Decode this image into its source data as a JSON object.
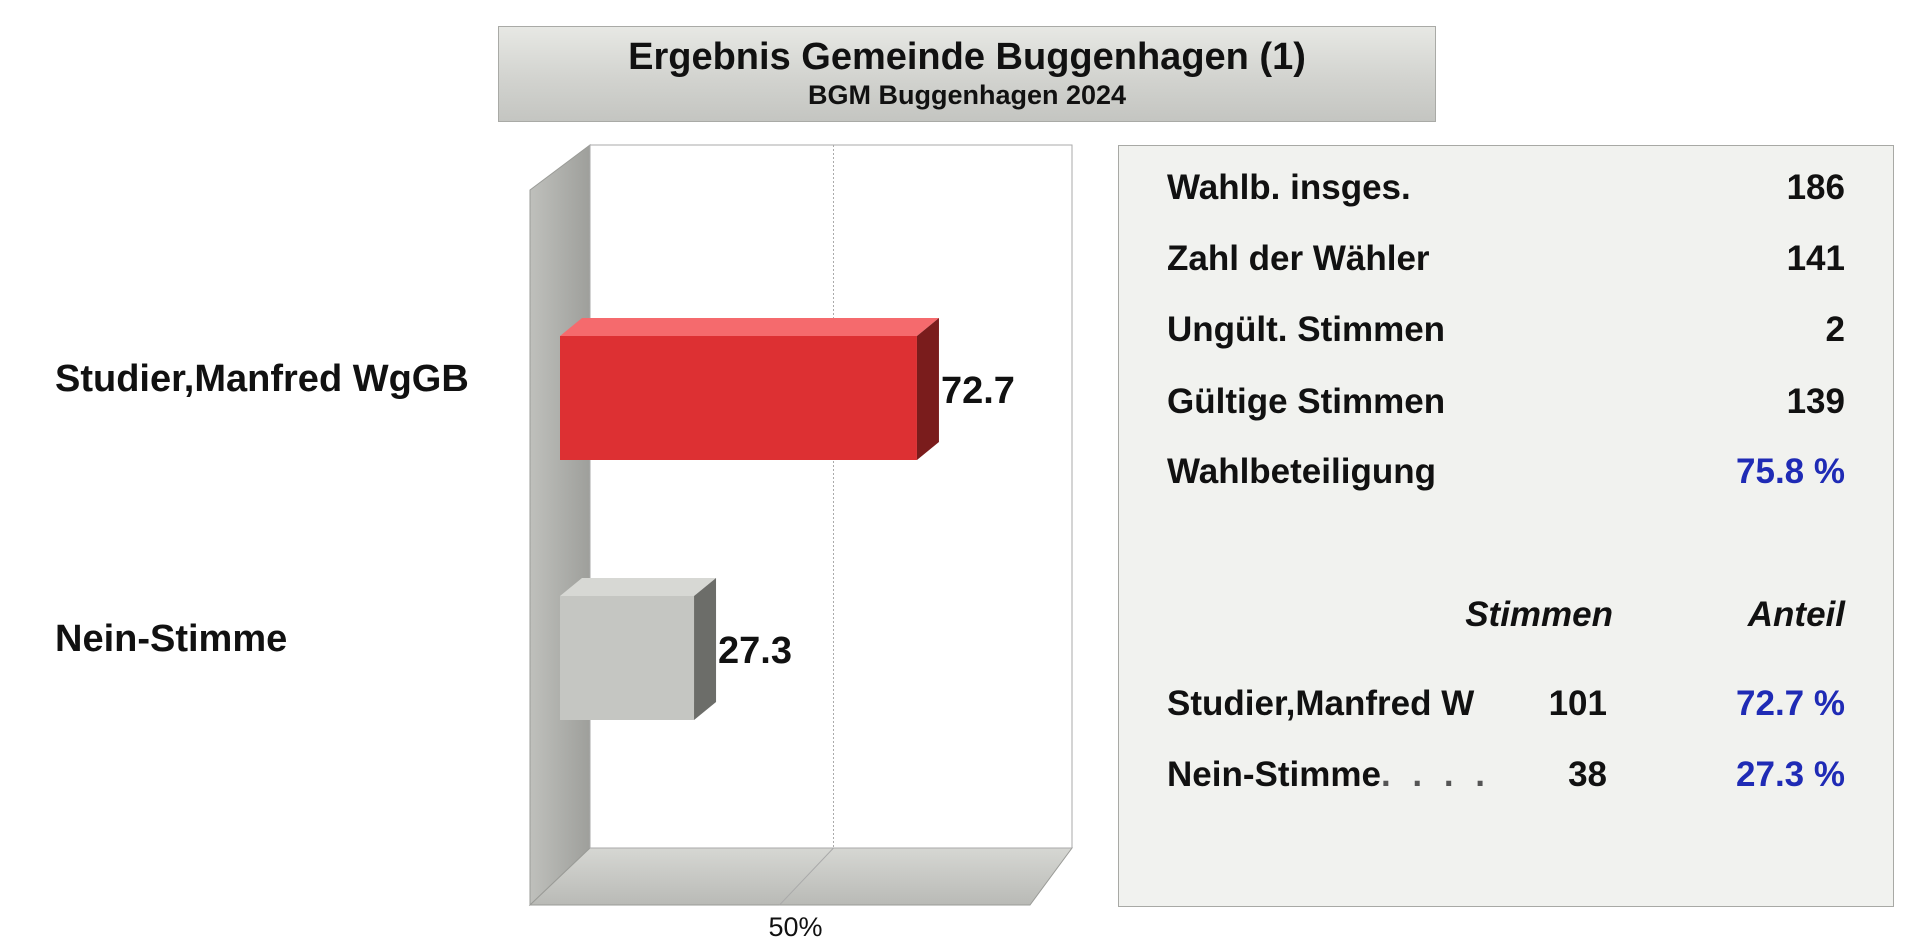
{
  "header": {
    "title": "Ergebnis Gemeinde Buggenhagen (1)",
    "subtitle": "BGM Buggenhagen 2024"
  },
  "chart_data": {
    "type": "bar",
    "orientation": "horizontal",
    "categories": [
      "Studier,Manfred  WgGB",
      "Nein-Stimme"
    ],
    "values": [
      72.7,
      27.3
    ],
    "value_labels": [
      "72.7",
      "27.3"
    ],
    "colors": [
      "#dd3033",
      "#c5c6c2"
    ],
    "xlim": [
      0,
      100
    ],
    "xticks": [
      50
    ],
    "xtick_labels": [
      "50%"
    ],
    "grid": true,
    "style": "3d"
  },
  "stats": {
    "rows": [
      {
        "label": "Wahlb. insges.",
        "value": "186"
      },
      {
        "label": "Zahl der Wähler",
        "value": "141"
      },
      {
        "label": "Ungült. Stimmen",
        "value": "2"
      },
      {
        "label": "Gültige Stimmen",
        "value": "139"
      },
      {
        "label": "Wahlbeteiligung",
        "value": "75.8 %"
      }
    ],
    "col_votes": "Stimmen",
    "col_share": "Anteil",
    "candidates": [
      {
        "name": "Studier,Manfred  W",
        "dots": "",
        "votes": "101",
        "share": "72.7 %"
      },
      {
        "name": "Nein-Stimme",
        "dots": ". . . .",
        "votes": "38",
        "share": "27.3 %"
      }
    ]
  },
  "colors": {
    "accent_blue": "#1f2bb5",
    "bar_red": "#dd3033",
    "bar_gray": "#c5c6c2"
  }
}
